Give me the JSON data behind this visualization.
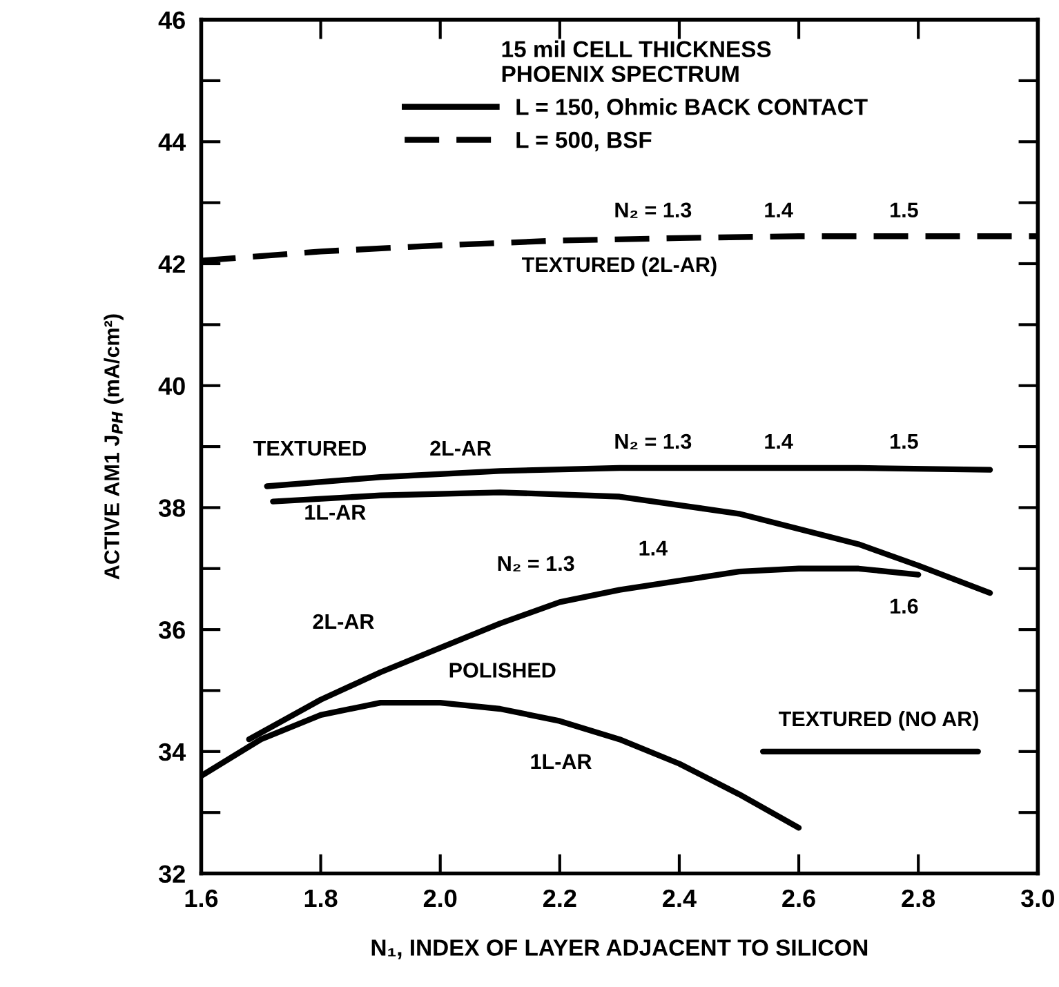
{
  "chart_data": {
    "type": "line",
    "xlabel": "N₁, INDEX OF LAYER ADJACENT TO SILICON",
    "ylabel": "ACTIVE AM1 J$_{PH}$ (mA/cm²)",
    "legend_title": "15 mil CELL THICKNESS\nPHOENIX SPECTRUM",
    "legend": "top",
    "xlim": [
      1.6,
      3.0
    ],
    "xticks": [
      1.6,
      1.8,
      {
        "value": 2,
        "label": "2.0"
      },
      2.2,
      2.4,
      2.6,
      2.8,
      {
        "value": 3,
        "label": "3.0"
      }
    ],
    "ylim": [
      32,
      46
    ],
    "yticks": [
      32,
      {
        "value": 33,
        "label": null
      },
      34,
      {
        "value": 35,
        "label": null
      },
      36,
      {
        "value": 37,
        "label": null
      },
      38,
      {
        "value": 39,
        "label": null
      },
      40,
      {
        "value": 41,
        "label": null
      },
      42,
      {
        "value": 43,
        "label": null
      },
      44,
      {
        "value": 45,
        "label": null
      },
      46
    ],
    "grid": false,
    "series": [
      {
        "name": "L = 150, Ohmic BACK CONTACT",
        "color": "#000000",
        "line_style": "solid",
        "x": [
          1.71,
          1.9,
          2.1,
          2.3,
          2.5,
          2.7,
          2.92
        ],
        "values": [
          38.35,
          38.5,
          38.6,
          38.65,
          38.65,
          38.65,
          38.62
        ]
      },
      {
        "name": "L = 500, BSF",
        "color": "#000000",
        "line_style": "dashed",
        "x": [
          1.6,
          1.8,
          2.0,
          2.2,
          2.4,
          2.6,
          2.8,
          3.0
        ],
        "values": [
          42.05,
          42.2,
          42.3,
          42.38,
          42.42,
          42.45,
          42.45,
          42.45
        ]
      },
      {
        "color": "#000000",
        "line_style": "solid",
        "x": [
          1.72,
          1.9,
          2.1,
          2.3,
          2.5,
          2.7,
          2.8,
          2.92
        ],
        "values": [
          38.1,
          38.2,
          38.25,
          38.18,
          37.9,
          37.4,
          37.05,
          36.6
        ]
      },
      {
        "color": "#000000",
        "line_style": "solid",
        "x": [
          1.68,
          1.8,
          1.9,
          2.0,
          2.1,
          2.2,
          2.3,
          2.4,
          2.5,
          2.6,
          2.7,
          2.8
        ],
        "values": [
          34.2,
          34.85,
          35.3,
          35.7,
          36.1,
          36.45,
          36.65,
          36.8,
          36.95,
          37.0,
          37.0,
          36.9
        ]
      },
      {
        "color": "#000000",
        "line_style": "solid",
        "x": [
          1.6,
          1.7,
          1.8,
          1.9,
          2.0,
          2.1,
          2.2,
          2.3,
          2.4,
          2.5,
          2.6
        ],
        "values": [
          33.6,
          34.2,
          34.6,
          34.8,
          34.8,
          34.7,
          34.5,
          34.2,
          33.8,
          33.3,
          32.75
        ]
      },
      {
        "color": "#000000",
        "line_style": "solid",
        "x": [
          2.54,
          2.9
        ],
        "values": [
          34.0,
          34.0
        ]
      }
    ],
    "annotations": [
      "N₂ = 1.3",
      "1.4",
      "1.5",
      "TEXTURED (2L-AR)",
      "TEXTURED",
      "2L-AR",
      "N₂ = 1.3",
      "1.4",
      "1.5",
      "1L-AR",
      "N₂ = 1.3",
      "1.4",
      "1.6",
      "2L-AR",
      "POLISHED",
      "1L-AR",
      "TEXTURED (NO AR)"
    ]
  }
}
